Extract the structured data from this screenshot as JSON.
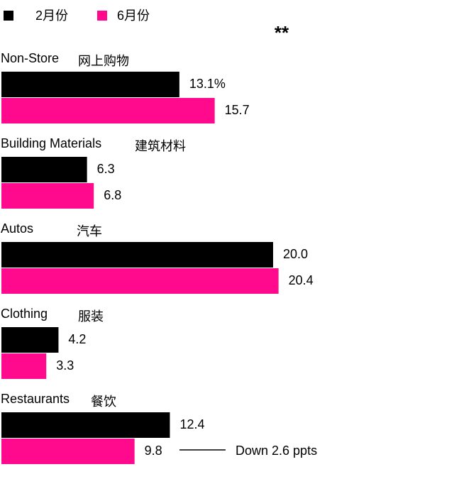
{
  "chart_data": {
    "type": "bar",
    "orientation": "horizontal",
    "categories": [
      "Non-Store",
      "Building Materials",
      "Autos",
      "Clothing",
      "Restaurants"
    ],
    "categories_zh": [
      "网上购物",
      "建筑材料",
      "汽车",
      "服装",
      "餐饮"
    ],
    "series": [
      {
        "name": "2月份",
        "color": "#000000",
        "values": [
          13.1,
          6.3,
          20.0,
          4.2,
          12.4
        ],
        "value_labels": [
          "13.1%",
          "6.3",
          "20.0",
          "4.2",
          "12.4"
        ]
      },
      {
        "name": "6月份",
        "color": "#ff0a8c",
        "values": [
          15.7,
          6.8,
          20.4,
          3.3,
          9.8
        ],
        "value_labels": [
          "15.7",
          "6.8",
          "20.4",
          "3.3",
          "9.8"
        ]
      }
    ],
    "annotations": [
      "**",
      "Down 2.6 ppts"
    ]
  }
}
